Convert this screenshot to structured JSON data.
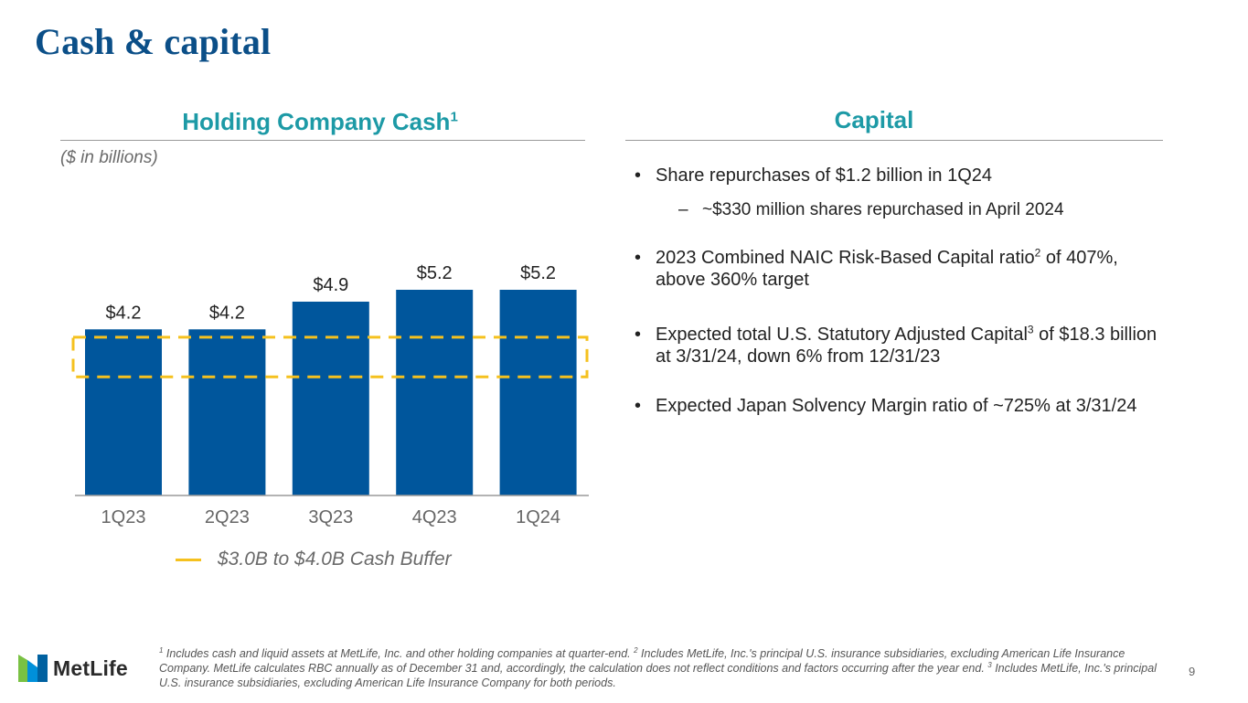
{
  "title": "Cash & capital",
  "left": {
    "heading": "Holding Company Cash",
    "heading_sup": "1",
    "units": "($ in billions)"
  },
  "right": {
    "heading": "Capital",
    "b1": "Share repurchases of $1.2 billion in 1Q24",
    "b1_sub": "~$330 million shares repurchased in April 2024",
    "b2_a": "2023 Combined NAIC Risk-Based Capital ratio",
    "b2_sup": "2",
    "b2_b": " of 407%, above 360% target",
    "b3_a": "Expected total U.S. Statutory Adjusted Capital",
    "b3_sup": "3",
    "b3_b": " of $18.3 billion at 3/31/24, down 6% from 12/31/23",
    "b4": "Expected Japan Solvency Margin ratio of ~725% at 3/31/24"
  },
  "chart_data": {
    "type": "bar",
    "title": "Holding Company Cash",
    "categories": [
      "1Q23",
      "2Q23",
      "3Q23",
      "4Q23",
      "1Q24"
    ],
    "values": [
      4.2,
      4.2,
      4.9,
      5.2,
      5.2
    ],
    "labels": [
      "$4.2",
      "$4.2",
      "$4.9",
      "$5.2",
      "$5.2"
    ],
    "ylabel": "($ in billions)",
    "ylim": [
      0,
      5.2
    ],
    "band": {
      "low": 3.0,
      "high": 4.0,
      "label": "$3.0B to $4.0B Cash Buffer"
    },
    "bar_color": "#00569c",
    "band_color": "#f5c11e"
  },
  "footnote": {
    "s1": "1",
    "t1": " Includes cash and liquid assets at MetLife, Inc. and other holding companies at quarter-end. ",
    "s2": "2",
    "t2": " Includes MetLife, Inc.'s principal U.S. insurance subsidiaries, excluding American Life Insurance Company. MetLife calculates RBC annually as of December 31 and, accordingly, the calculation does not reflect conditions and factors occurring after the year end. ",
    "s3": "3",
    "t3": " Includes MetLife, Inc.'s principal U.S. insurance subsidiaries, excluding American Life Insurance Company for both periods."
  },
  "logo_text": "MetLife",
  "page_number": "9"
}
